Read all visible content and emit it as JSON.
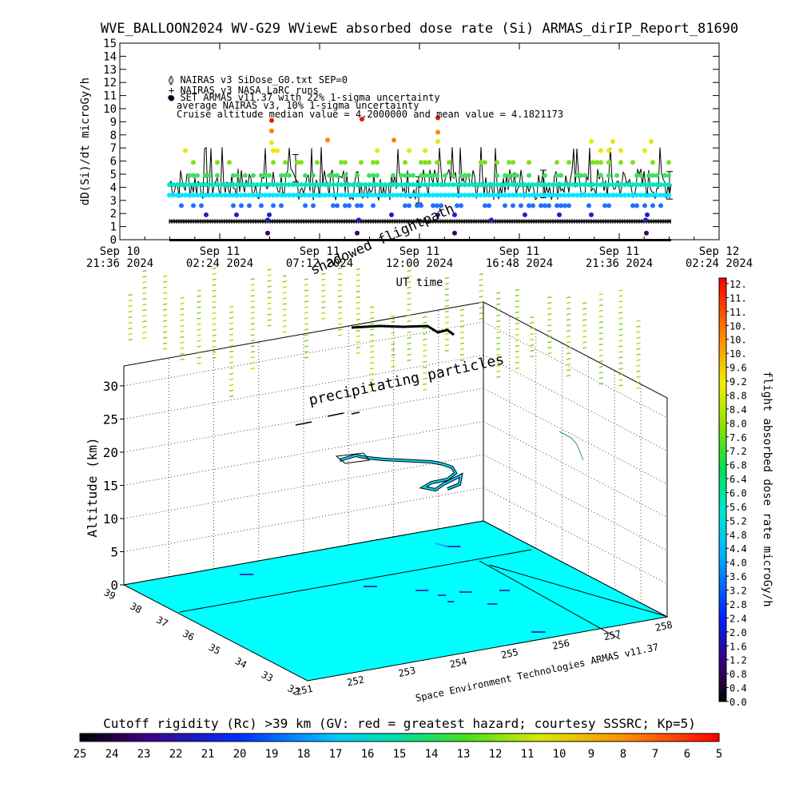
{
  "title": "WVE_BALLOON2024 WV-G29 WViewE absorbed dose rate (Si) ARMAS_dirIP_Report_81690",
  "chart_data": [
    {
      "type": "scatter",
      "title": "WVE_BALLOON2024 WV-G29 WViewE absorbed dose rate (Si) ARMAS_dirIP_Report_81690",
      "xlabel": "UT time",
      "ylabel": "dD(Si)/dt microGy/h",
      "ylim": [
        0,
        15
      ],
      "yticks": [
        "0",
        "1",
        "2",
        "3",
        "4",
        "5",
        "6",
        "7",
        "8",
        "9",
        "10",
        "11",
        "12",
        "13",
        "14",
        "15"
      ],
      "xticks": [
        {
          "date": "Sep 10",
          "time": "21:36 2024"
        },
        {
          "date": "Sep 11",
          "time": "02:24 2024"
        },
        {
          "date": "Sep 11",
          "time": "07:12 2024"
        },
        {
          "date": "Sep 11",
          "time": "12:00 2024"
        },
        {
          "date": "Sep 11",
          "time": "16:48 2024"
        },
        {
          "date": "Sep 11",
          "time": "21:36 2024"
        },
        {
          "date": "Sep 12",
          "time": "02:24 2024"
        }
      ],
      "legend": [
        "◊ NAIRAS v3 SiDose_G0.txt SEP=0",
        "+ NAIRAS v3 NASA LaRC runs",
        "● SET ARMAS v11.37 with 22% 1-sigma uncertainty",
        "average NAIRAS v3, 10% 1-sigma uncertainty",
        "Cruise altitude median value = 4.2000000 and mean value = 4.1821173"
      ],
      "cruise_median": 4.2,
      "cruise_mean": 4.1821173,
      "series": [
        {
          "name": "NAIRAS v3 SiDose_G0.txt SEP=0",
          "baseline": 0
        },
        {
          "name": "NAIRAS v3 NASA LaRC runs",
          "baseline": 1.4
        },
        {
          "name": "SET ARMAS v11.37 with 22% 1-sigma uncertainty",
          "range": [
            0,
            9.3
          ]
        },
        {
          "name": "average NAIRAS v3, 10% 1-sigma uncertainty",
          "range": [
            2.5,
            6.7
          ]
        }
      ]
    },
    {
      "type": "scatter",
      "zlabel": "Altitude (km)",
      "zlim": [
        0,
        33
      ],
      "zticks": [
        "0",
        "5",
        "10",
        "15",
        "20",
        "25",
        "30"
      ],
      "lat_ticks": [
        "39",
        "38",
        "37",
        "36",
        "35",
        "34",
        "33",
        "32"
      ],
      "lon_ticks": [
        "251",
        "252",
        "253",
        "254",
        "255",
        "256",
        "257",
        "258"
      ],
      "annotations": [
        "precipitating particles",
        "shadowed flightpath"
      ],
      "credit": "Space Environment Technologies ARMAS v11.37",
      "surface_color": "#00ffff",
      "colorbar": {
        "label": "flight absorbed dose rate microGy/h",
        "labels": [
          "12.",
          "11.",
          "11.",
          "10.",
          "10.",
          "10.",
          "9.6",
          "9.2",
          "8.8",
          "8.4",
          "8.0",
          "7.6",
          "7.2",
          "6.8",
          "6.4",
          "6.0",
          "5.6",
          "5.2",
          "4.8",
          "4.4",
          "4.0",
          "3.6",
          "3.2",
          "2.8",
          "2.4",
          "2.0",
          "1.6",
          "1.2",
          "0.8",
          "0.4",
          "0.0"
        ]
      },
      "rigidity_bar": {
        "title": "Cutoff rigidity (Rc) >39 km (GV: red = greatest hazard; courtesy SSSRC; Kp=5)",
        "labels": [
          "25",
          "24",
          "23",
          "22",
          "21",
          "20",
          "19",
          "18",
          "17",
          "16",
          "15",
          "14",
          "13",
          "12",
          "11",
          "10",
          "9",
          "8",
          "7",
          "6",
          "5"
        ]
      }
    }
  ]
}
